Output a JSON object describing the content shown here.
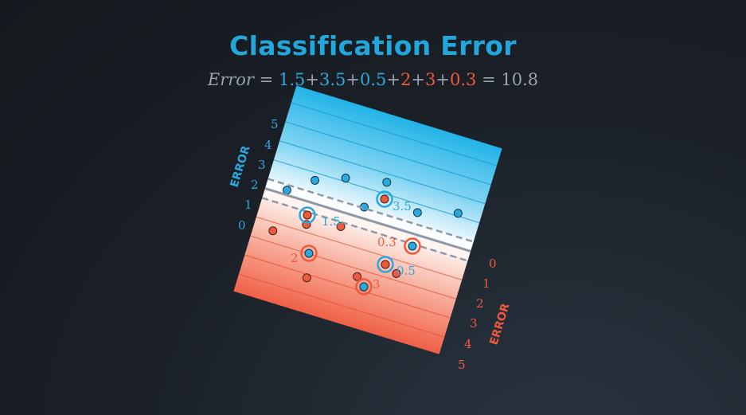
{
  "title": "Classification Error",
  "formula": {
    "lhs": "Error",
    "equals": "=",
    "terms": [
      {
        "text": "1.5",
        "color": "#2aa8df"
      },
      {
        "text": "3.5",
        "color": "#2aa8df"
      },
      {
        "text": "0.5",
        "color": "#2aa8df"
      },
      {
        "text": "2",
        "color": "#ee5a3e"
      },
      {
        "text": "3",
        "color": "#ee5a3e"
      },
      {
        "text": "0.3",
        "color": "#ee5a3e"
      }
    ],
    "plus": "+",
    "result": "10.8"
  },
  "colors": {
    "blue": "#2aa8df",
    "red": "#ee5a3e",
    "line": "#8e99a8"
  },
  "blue_side": {
    "axis_title": "ERROR",
    "ticks": [
      "0",
      "1",
      "2",
      "3",
      "4",
      "5"
    ]
  },
  "red_side": {
    "axis_title": "ERROR",
    "ticks": [
      "0",
      "1",
      "2",
      "3",
      "4",
      "5"
    ]
  },
  "misclassified_labels": [
    "1.5",
    "3.5",
    "0.5",
    "2",
    "3",
    "0.3"
  ]
}
